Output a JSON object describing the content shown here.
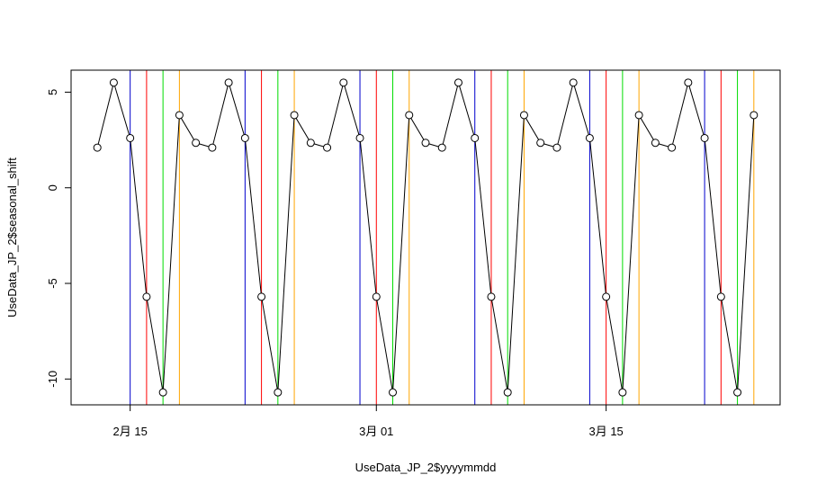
{
  "chart_data": {
    "type": "line",
    "xlabel": "UseData_JP_2$yyyymmdd",
    "ylabel": "UseData_JP_2$seasonal_shift",
    "x": [
      "02-13",
      "02-14",
      "02-15",
      "02-16",
      "02-17",
      "02-18",
      "02-19",
      "02-20",
      "02-21",
      "02-22",
      "02-23",
      "02-24",
      "02-25",
      "02-26",
      "02-27",
      "02-28",
      "02-29",
      "03-01",
      "03-02",
      "03-03",
      "03-04",
      "03-05",
      "03-06",
      "03-07",
      "03-08",
      "03-09",
      "03-10",
      "03-11",
      "03-12",
      "03-13",
      "03-14",
      "03-15",
      "03-16",
      "03-17",
      "03-18",
      "03-19",
      "03-20",
      "03-21",
      "03-22",
      "03-23",
      "03-24"
    ],
    "series": [
      {
        "color": "#000000",
        "values": [
          2.1,
          5.5,
          2.6,
          -5.7,
          -10.7,
          3.8,
          2.35,
          2.1,
          5.5,
          2.6,
          -5.7,
          -10.7,
          3.8,
          2.35,
          2.1,
          5.5,
          2.6,
          -5.7,
          -10.7,
          3.8,
          2.35,
          2.1,
          5.5,
          2.6,
          -5.7,
          -10.7,
          3.8,
          2.35,
          2.1,
          5.5,
          2.6,
          -5.7,
          -10.7,
          3.8,
          2.35,
          2.1,
          5.5,
          2.6,
          -5.7,
          -10.7,
          3.8
        ]
      }
    ],
    "vlines": [
      {
        "color": "#0000cd",
        "x": [
          "02-15",
          "02-22",
          "02-29",
          "03-07",
          "03-14",
          "03-21"
        ]
      },
      {
        "color": "#ff0000",
        "x": [
          "02-16",
          "02-23",
          "03-01",
          "03-08",
          "03-15",
          "03-22"
        ]
      },
      {
        "color": "#00dd00",
        "x": [
          "02-17",
          "02-24",
          "03-02",
          "03-09",
          "03-16",
          "03-23"
        ]
      },
      {
        "color": "#ffa500",
        "x": [
          "02-18",
          "02-25",
          "03-03",
          "03-10",
          "03-17",
          "03-24"
        ]
      }
    ],
    "xticks": [
      {
        "value": "02-15",
        "label": "2月 15"
      },
      {
        "value": "03-01",
        "label": "3月 01"
      },
      {
        "value": "03-15",
        "label": "3月 15"
      }
    ],
    "ylim": [
      -11.35,
      6.15
    ],
    "yticks": [
      -10,
      -5,
      0,
      5
    ]
  }
}
